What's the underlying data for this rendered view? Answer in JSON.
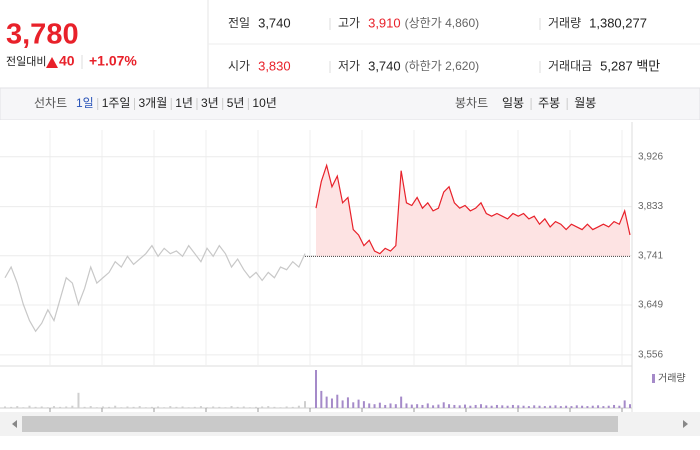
{
  "header": {
    "price": "3,780",
    "change_label": "전일대비",
    "change": "40",
    "change_rate": "+1.07%",
    "rows": [
      [
        {
          "label": "전일",
          "value": "3,740"
        },
        {
          "label": "고가",
          "value": "3,910",
          "note": "(상한가 4,860)"
        },
        {
          "label": "거래량",
          "value": "1,380,277"
        }
      ],
      [
        {
          "label": "시가",
          "value": "3,830"
        },
        {
          "label": "저가",
          "value": "3,740",
          "note": "(하한가 2,620)"
        },
        {
          "label": "거래대금",
          "value": "5,287 백만"
        }
      ]
    ]
  },
  "tabs": {
    "line_label": "선차트",
    "line_periods": [
      "1일",
      "1주일",
      "3개월",
      "1년",
      "3년",
      "5년",
      "10년"
    ],
    "candle_label": "봉차트",
    "candle_periods": [
      "일봉",
      "주봉",
      "월봉"
    ]
  },
  "chart_data": [
    {
      "type": "line",
      "ylim": [
        3537,
        3991
      ],
      "yticks": [
        {
          "value": 3556,
          "label": "3,556"
        },
        {
          "value": 3649,
          "label": "3,649"
        },
        {
          "value": 3741,
          "label": "3,741"
        },
        {
          "value": 3833,
          "label": "3,833"
        },
        {
          "value": 3926,
          "label": "3,926"
        }
      ],
      "grid": true,
      "baseline": 3740,
      "series": [
        {
          "color": "#c8c8c8",
          "values": [
            3700,
            3720,
            3690,
            3650,
            3620,
            3600,
            3615,
            3640,
            3620,
            3660,
            3700,
            3690,
            3650,
            3680,
            3720,
            3690,
            3700,
            3710,
            3730,
            3720,
            3740,
            3725,
            3735,
            3745,
            3760,
            3740,
            3755,
            3745,
            3750,
            3740,
            3760,
            3745,
            3730,
            3755,
            3740,
            3760,
            3745,
            3720,
            3735,
            3715,
            3700,
            3710,
            3695,
            3710,
            3700,
            3720,
            3715,
            3730,
            3720,
            3745
          ]
        },
        {
          "color": "#e8212a",
          "values": [
            3830,
            3880,
            3910,
            3870,
            3890,
            3840,
            3850,
            3790,
            3780,
            3760,
            3770,
            3750,
            3745,
            3755,
            3750,
            3760,
            3900,
            3840,
            3835,
            3850,
            3830,
            3840,
            3825,
            3830,
            3860,
            3870,
            3840,
            3830,
            3835,
            3825,
            3830,
            3840,
            3820,
            3815,
            3820,
            3815,
            3810,
            3820,
            3815,
            3820,
            3810,
            3815,
            3800,
            3810,
            3795,
            3805,
            3800,
            3790,
            3800,
            3795,
            3790,
            3800,
            3790,
            3795,
            3800,
            3795,
            3805,
            3800,
            3825,
            3780
          ]
        }
      ]
    },
    {
      "type": "bar",
      "legend": "거래량",
      "color": "#a58ac9",
      "ylim": [
        0,
        100
      ],
      "values": [
        4,
        3,
        5,
        2,
        6,
        3,
        4,
        2,
        5,
        3,
        4,
        6,
        40,
        3,
        5,
        2,
        4,
        3,
        6,
        2,
        4,
        3,
        5,
        2,
        3,
        4,
        2,
        5,
        3,
        4,
        2,
        3,
        5,
        2,
        4,
        3,
        2,
        5,
        3,
        4,
        2,
        3,
        4,
        5,
        3,
        2,
        4,
        3,
        6,
        18,
        100,
        45,
        30,
        25,
        35,
        20,
        28,
        15,
        22,
        18,
        12,
        10,
        14,
        8,
        12,
        10,
        30,
        12,
        9,
        10,
        8,
        12,
        7,
        9,
        15,
        10,
        8,
        7,
        9,
        6,
        8,
        10,
        7,
        6,
        8,
        7,
        6,
        8,
        7,
        6,
        5,
        7,
        6,
        5,
        6,
        7,
        5,
        6,
        5,
        7,
        6,
        5,
        6,
        7,
        5,
        6,
        8,
        6,
        20,
        10
      ]
    }
  ]
}
